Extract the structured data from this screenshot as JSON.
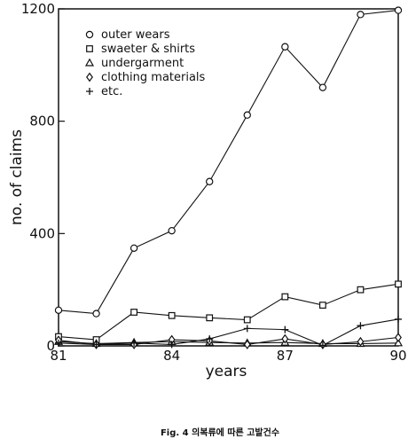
{
  "chart_data": {
    "type": "line",
    "xlabel": "years",
    "ylabel": "no. of claims",
    "xlim": [
      81,
      90
    ],
    "ylim": [
      0,
      1200
    ],
    "x_ticks": [
      "81",
      "84",
      "87",
      "90"
    ],
    "y_ticks": [
      "0",
      "400",
      "800",
      "1200"
    ],
    "grid": false,
    "legend_position": "top-left",
    "x": [
      81,
      82,
      83,
      84,
      85,
      86,
      87,
      88,
      89,
      90
    ],
    "series": [
      {
        "name": "outer wears",
        "marker": "circle",
        "values": [
          127,
          115,
          348,
          410,
          585,
          822,
          1065,
          920,
          1180,
          1195
        ]
      },
      {
        "name": "swaeter & shirts",
        "marker": "square",
        "values": [
          33,
          22,
          120,
          108,
          100,
          93,
          175,
          145,
          200,
          220
        ]
      },
      {
        "name": "undergarment",
        "marker": "triangle",
        "values": [
          15,
          8,
          12,
          15,
          12,
          10,
          12,
          8,
          8,
          10
        ]
      },
      {
        "name": "clothing materials",
        "marker": "diamond",
        "values": [
          20,
          5,
          5,
          22,
          18,
          5,
          25,
          5,
          15,
          30
        ]
      },
      {
        "name": "etc.",
        "marker": "plus",
        "values": [
          10,
          5,
          10,
          5,
          25,
          62,
          58,
          2,
          72,
          95
        ]
      }
    ]
  },
  "caption": "Fig. 4   의복류에 따른 고발건수"
}
